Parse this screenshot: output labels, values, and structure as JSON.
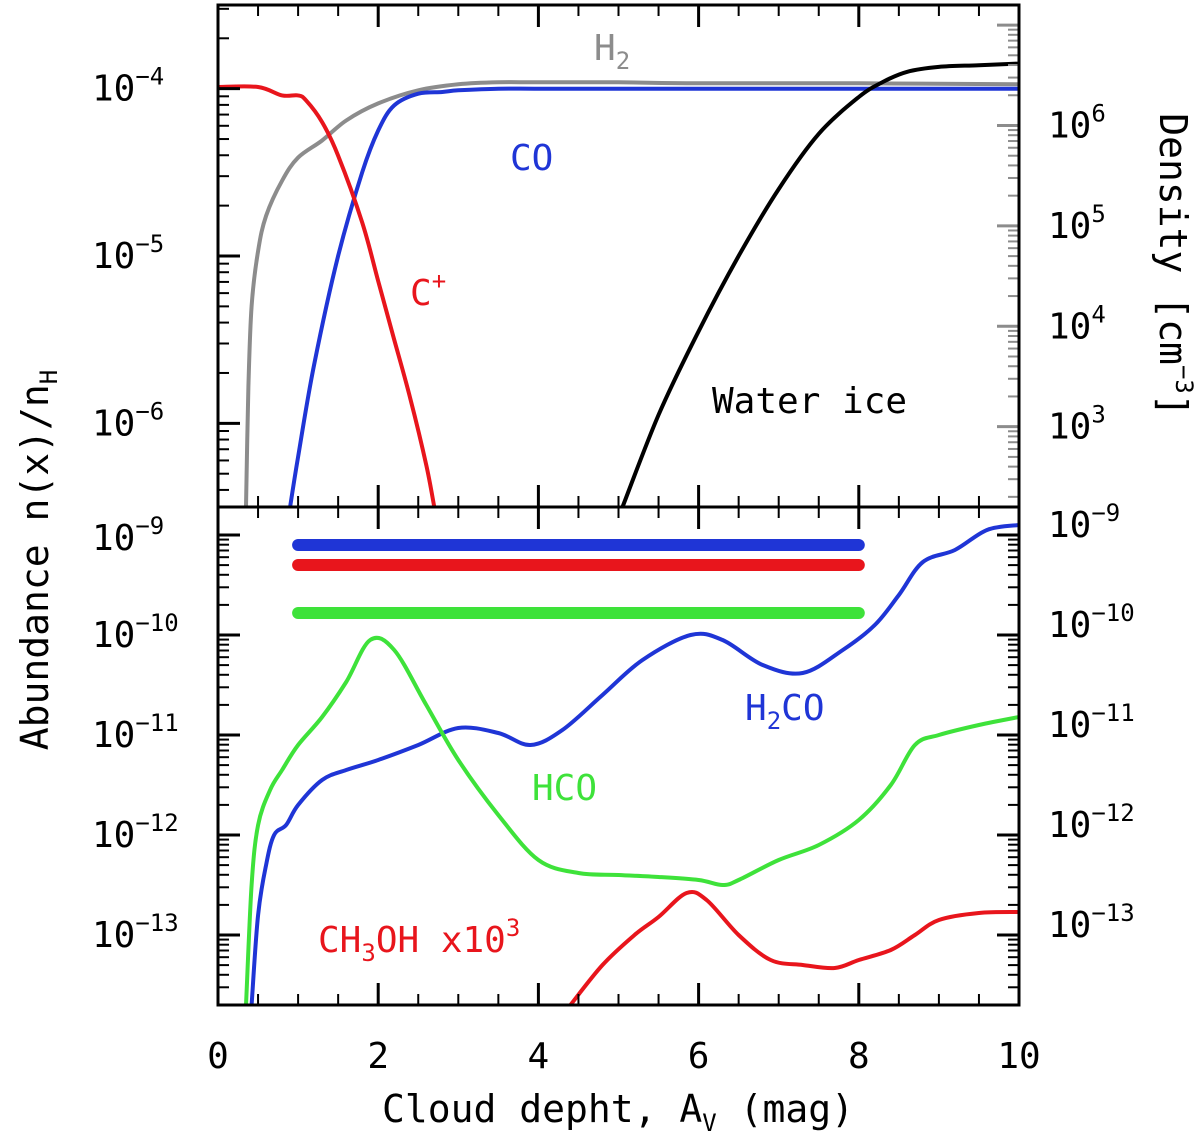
{
  "chart_data": [
    {
      "type": "line",
      "panel": "top",
      "xlim": [
        0,
        10
      ],
      "ylim_log10": [
        -6.5,
        -3.5
      ],
      "y2lim_log10": [
        2.2,
        7.2
      ],
      "ylabel": "Abundance n(x)/n",
      "ylabel_sub": "H",
      "y2label": "Density [cm",
      "y2label_sup": "−3",
      "y2label_close": "]",
      "yticks": [
        {
          "exp": -6,
          "label": "10",
          "sup": "−6"
        },
        {
          "exp": -5,
          "label": "10",
          "sup": "−5"
        },
        {
          "exp": -4,
          "label": "10",
          "sup": "−4"
        }
      ],
      "y2ticks": [
        {
          "exp": 3,
          "label": "10",
          "sup": "3"
        },
        {
          "exp": 4,
          "label": "10",
          "sup": "4"
        },
        {
          "exp": 5,
          "label": "10",
          "sup": "5"
        },
        {
          "exp": 6,
          "label": "10",
          "sup": "6"
        }
      ],
      "series": [
        {
          "name": "H2",
          "label": "H",
          "label_sub": "2",
          "color": "#8c8c8c",
          "axis": "right",
          "x": [
            0.35,
            0.38,
            0.42,
            0.5,
            0.6,
            0.8,
            1.0,
            1.3,
            1.6,
            2.0,
            2.5,
            3.0,
            3.5,
            4.0,
            5.0,
            6.0,
            8.0,
            10.0
          ],
          "y": [
            2.2,
            3.4,
            4.2,
            4.75,
            5.1,
            5.45,
            5.68,
            5.85,
            6.05,
            6.22,
            6.35,
            6.41,
            6.43,
            6.43,
            6.43,
            6.42,
            6.42,
            6.41
          ]
        },
        {
          "name": "CO",
          "label": "CO",
          "color": "#1f35d6",
          "axis": "left",
          "x": [
            0.9,
            1.0,
            1.2,
            1.5,
            1.8,
            2.0,
            2.2,
            2.5,
            2.8,
            3.0,
            3.5,
            4.0,
            5.0,
            6.0,
            8.0,
            10.0
          ],
          "y": [
            -6.5,
            -6.2,
            -5.65,
            -5.0,
            -4.5,
            -4.25,
            -4.1,
            -4.03,
            -4.02,
            -4.01,
            -4.0,
            -4.0,
            -4.0,
            -4.0,
            -4.0,
            -4.0
          ]
        },
        {
          "name": "C+",
          "label": "C",
          "label_sup": "+",
          "color": "#e8151c",
          "axis": "left",
          "x": [
            0.0,
            0.5,
            0.8,
            1.0,
            1.1,
            1.3,
            1.5,
            1.8,
            2.0,
            2.2,
            2.4,
            2.6,
            2.7
          ],
          "y": [
            -3.99,
            -3.99,
            -4.04,
            -4.04,
            -4.07,
            -4.2,
            -4.4,
            -4.8,
            -5.15,
            -5.5,
            -5.85,
            -6.25,
            -6.5
          ]
        },
        {
          "name": "Water ice",
          "label": "Water ice",
          "color": "#000000",
          "axis": "left",
          "x": [
            5.05,
            5.5,
            6.0,
            6.5,
            7.0,
            7.5,
            8.0,
            8.3,
            8.6,
            9.0,
            9.5,
            10.0
          ],
          "y": [
            -6.5,
            -5.95,
            -5.45,
            -5.0,
            -4.6,
            -4.27,
            -4.05,
            -3.96,
            -3.9,
            -3.87,
            -3.86,
            -3.85
          ]
        }
      ]
    },
    {
      "type": "line",
      "panel": "bottom",
      "xlim": [
        0,
        10
      ],
      "ylim_log10": [
        -13.7,
        -8.72
      ],
      "xlabel": "Cloud depht, A",
      "xlabel_sub": "V",
      "xlabel_tail": "(mag)",
      "xticks": [
        0,
        2,
        4,
        6,
        8,
        10
      ],
      "yticks": [
        {
          "exp": -9,
          "label": "10",
          "sup": "−9"
        },
        {
          "exp": -10,
          "label": "10",
          "sup": "−10"
        },
        {
          "exp": -11,
          "label": "10",
          "sup": "−11"
        },
        {
          "exp": -12,
          "label": "10",
          "sup": "−12"
        },
        {
          "exp": -13,
          "label": "10",
          "sup": "−13"
        }
      ],
      "observed_ranges": [
        {
          "name": "H2CO observed",
          "color": "#1f35d6",
          "x": [
            1.0,
            8.0
          ],
          "y": -9.1
        },
        {
          "name": "CH3OH observed",
          "color": "#e8151c",
          "x": [
            1.0,
            8.0
          ],
          "y": -9.3
        },
        {
          "name": "HCO observed",
          "color": "#3ee23a",
          "x": [
            1.0,
            8.0
          ],
          "y": -9.78
        }
      ],
      "series": [
        {
          "name": "H2CO",
          "label": "H",
          "label_sub": "2",
          "label_tail": "CO",
          "color": "#1f35d6",
          "x": [
            0.42,
            0.5,
            0.6,
            0.7,
            0.85,
            1.0,
            1.3,
            1.6,
            2.0,
            2.5,
            3.0,
            3.5,
            3.9,
            4.3,
            4.8,
            5.3,
            5.9,
            6.3,
            6.8,
            7.3,
            7.8,
            8.2,
            8.5,
            8.8,
            9.2,
            9.6,
            10.0
          ]
        },
        {
          "name": "HCO",
          "label": "HCO",
          "color": "#3ee23a",
          "x": [
            0.35,
            0.42,
            0.5,
            0.65,
            0.8,
            1.0,
            1.3,
            1.6,
            1.9,
            2.2,
            2.6,
            3.0,
            3.5,
            4.0,
            4.5,
            5.0,
            5.5,
            6.0,
            6.3,
            6.5,
            7.0,
            7.5,
            8.0,
            8.4,
            8.7,
            9.0,
            9.5,
            10.0
          ]
        },
        {
          "name": "CH3OH x10^3",
          "label": "CH",
          "label_sub": "3",
          "label_mid": "OH x10",
          "label_sup": "3",
          "color": "#e8151c",
          "x": [
            4.4,
            4.8,
            5.2,
            5.5,
            5.85,
            6.1,
            6.5,
            6.9,
            7.3,
            7.7,
            8.0,
            8.4,
            8.7,
            9.0,
            9.5,
            10.0
          ]
        }
      ],
      "series_y": {
        "H2CO": [
          -13.7,
          -12.8,
          -12.3,
          -12.0,
          -11.9,
          -11.7,
          -11.45,
          -11.35,
          -11.25,
          -11.1,
          -10.93,
          -10.98,
          -11.1,
          -10.95,
          -10.6,
          -10.25,
          -10.0,
          -10.05,
          -10.3,
          -10.38,
          -10.15,
          -9.9,
          -9.6,
          -9.27,
          -9.15,
          -8.95,
          -8.9
        ],
        "HCO": [
          -13.7,
          -12.5,
          -11.9,
          -11.55,
          -11.35,
          -11.1,
          -10.82,
          -10.47,
          -10.05,
          -10.15,
          -10.7,
          -11.25,
          -11.8,
          -12.25,
          -12.38,
          -12.4,
          -12.42,
          -12.45,
          -12.5,
          -12.45,
          -12.25,
          -12.1,
          -11.85,
          -11.5,
          -11.1,
          -11.0,
          -10.9,
          -10.82
        ],
        "CH3OH x10^3": [
          -13.7,
          -13.3,
          -13.0,
          -12.82,
          -12.58,
          -12.65,
          -13.0,
          -13.25,
          -13.3,
          -13.33,
          -13.25,
          -13.15,
          -13.0,
          -12.85,
          -12.78,
          -12.77
        ]
      }
    }
  ]
}
